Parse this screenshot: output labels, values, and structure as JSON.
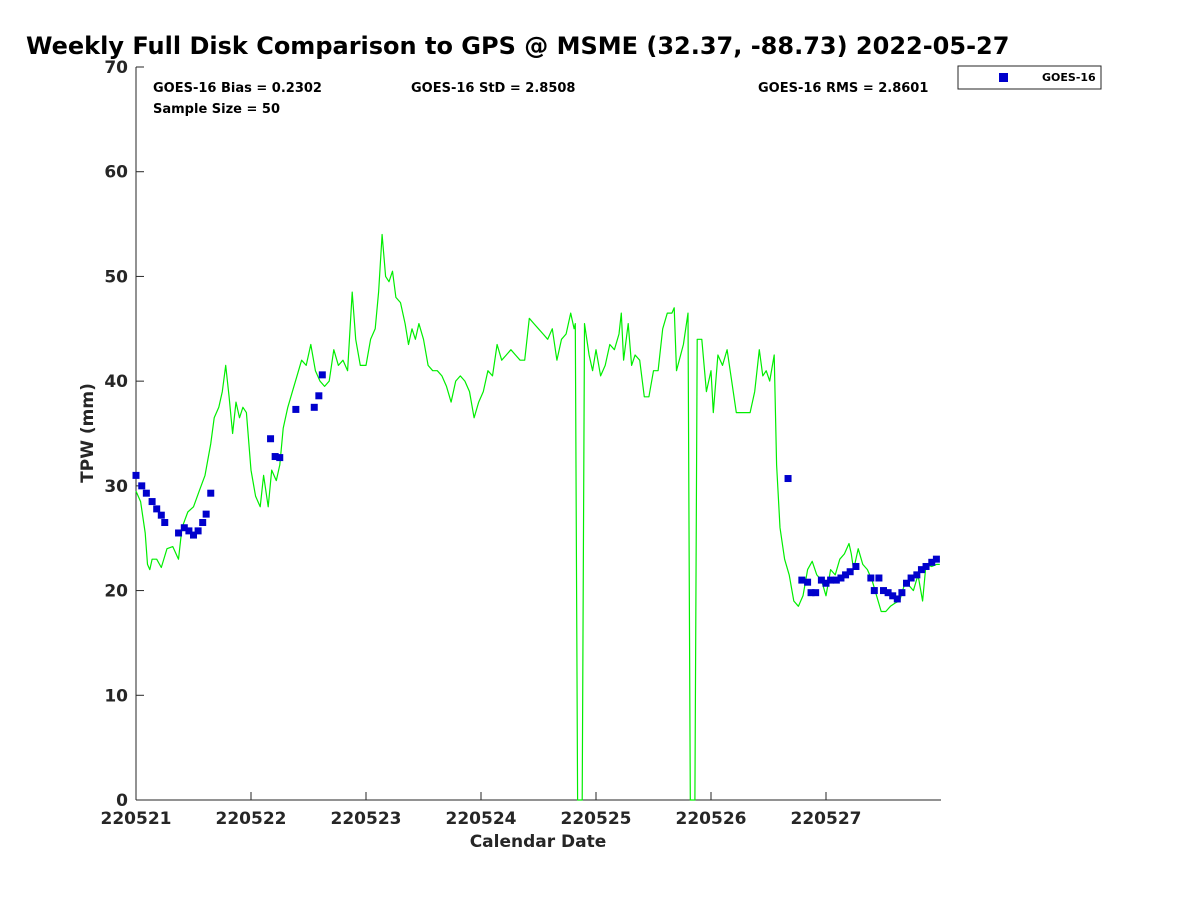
{
  "chart_data": {
    "type": "scatter",
    "title": "Weekly Full Disk Comparison to GPS @ MSME (32.37, -88.73) 2022-05-27",
    "xlabel": "Calendar Date",
    "ylabel": "TPW (mm)",
    "xlim": [
      220521,
      220528
    ],
    "ylim": [
      0,
      70
    ],
    "x_ticks": [
      {
        "label": "220521",
        "value": 220521
      },
      {
        "label": "220522",
        "value": 220522
      },
      {
        "label": "220523",
        "value": 220523
      },
      {
        "label": "220524",
        "value": 220524
      },
      {
        "label": "220525",
        "value": 220525
      },
      {
        "label": "220526",
        "value": 220526
      },
      {
        "label": "220527",
        "value": 220527
      }
    ],
    "y_ticks": [
      0,
      10,
      20,
      30,
      40,
      50,
      60,
      70
    ],
    "stats": {
      "bias": "GOES-16 Bias = 0.2302",
      "std": "GOES-16 StD = 2.8508",
      "rms": "GOES-16 RMS = 2.8601",
      "sample": "Sample Size = 50"
    },
    "legend": {
      "placement": "top-right",
      "entries": [
        {
          "label": "GOES-16",
          "color": "#0000cc",
          "marker": "square"
        }
      ]
    },
    "grid": false,
    "gps_line": {
      "color": "#00ee00",
      "points": [
        [
          220521.0,
          29.5
        ],
        [
          220521.04,
          28.5
        ],
        [
          220521.08,
          25.5
        ],
        [
          220521.1,
          22.5
        ],
        [
          220521.12,
          22.0
        ],
        [
          220521.14,
          23.0
        ],
        [
          220521.18,
          23.0
        ],
        [
          220521.22,
          22.2
        ],
        [
          220521.27,
          24.0
        ],
        [
          220521.32,
          24.2
        ],
        [
          220521.37,
          23.0
        ],
        [
          220521.4,
          26.0
        ],
        [
          220521.45,
          27.5
        ],
        [
          220521.5,
          28.0
        ],
        [
          220521.55,
          29.5
        ],
        [
          220521.6,
          31.0
        ],
        [
          220521.65,
          34.0
        ],
        [
          220521.68,
          36.5
        ],
        [
          220521.72,
          37.5
        ],
        [
          220521.75,
          39.0
        ],
        [
          220521.78,
          41.5
        ],
        [
          220521.81,
          38.5
        ],
        [
          220521.84,
          35.0
        ],
        [
          220521.87,
          38.0
        ],
        [
          220521.9,
          36.5
        ],
        [
          220521.93,
          37.5
        ],
        [
          220521.96,
          37.0
        ],
        [
          220522.0,
          31.5
        ],
        [
          220522.04,
          29.0
        ],
        [
          220522.08,
          28.0
        ],
        [
          220522.11,
          31.0
        ],
        [
          220522.15,
          28.0
        ],
        [
          220522.18,
          31.5
        ],
        [
          220522.22,
          30.5
        ],
        [
          220522.25,
          32.0
        ],
        [
          220522.28,
          35.5
        ],
        [
          220522.32,
          37.5
        ],
        [
          220522.36,
          39.0
        ],
        [
          220522.4,
          40.5
        ],
        [
          220522.44,
          42.0
        ],
        [
          220522.48,
          41.5
        ],
        [
          220522.52,
          43.5
        ],
        [
          220522.56,
          41.0
        ],
        [
          220522.6,
          40.0
        ],
        [
          220522.64,
          39.5
        ],
        [
          220522.68,
          40.0
        ],
        [
          220522.72,
          43.0
        ],
        [
          220522.76,
          41.5
        ],
        [
          220522.8,
          42.0
        ],
        [
          220522.84,
          41.0
        ],
        [
          220522.88,
          48.5
        ],
        [
          220522.91,
          44.0
        ],
        [
          220522.95,
          41.5
        ],
        [
          220523.0,
          41.5
        ],
        [
          220523.04,
          44.0
        ],
        [
          220523.08,
          45.0
        ],
        [
          220523.11,
          48.5
        ],
        [
          220523.14,
          54.0
        ],
        [
          220523.17,
          50.0
        ],
        [
          220523.2,
          49.5
        ],
        [
          220523.23,
          50.5
        ],
        [
          220523.26,
          48.0
        ],
        [
          220523.3,
          47.5
        ],
        [
          220523.34,
          45.5
        ],
        [
          220523.37,
          43.5
        ],
        [
          220523.4,
          45.0
        ],
        [
          220523.43,
          44.0
        ],
        [
          220523.46,
          45.5
        ],
        [
          220523.5,
          44.0
        ],
        [
          220523.54,
          41.5
        ],
        [
          220523.58,
          41.0
        ],
        [
          220523.62,
          41.0
        ],
        [
          220523.66,
          40.5
        ],
        [
          220523.7,
          39.5
        ],
        [
          220523.74,
          38.0
        ],
        [
          220523.78,
          40.0
        ],
        [
          220523.82,
          40.5
        ],
        [
          220523.86,
          40.0
        ],
        [
          220523.9,
          39.0
        ],
        [
          220523.94,
          36.5
        ],
        [
          220523.98,
          38.0
        ],
        [
          220524.02,
          39.0
        ],
        [
          220524.06,
          41.0
        ],
        [
          220524.1,
          40.5
        ],
        [
          220524.14,
          43.5
        ],
        [
          220524.18,
          42.0
        ],
        [
          220524.22,
          42.5
        ],
        [
          220524.26,
          43.0
        ],
        [
          220524.3,
          42.5
        ],
        [
          220524.34,
          42.0
        ],
        [
          220524.38,
          42.0
        ],
        [
          220524.42,
          46.0
        ],
        [
          220524.46,
          45.5
        ],
        [
          220524.5,
          45.0
        ],
        [
          220524.54,
          44.5
        ],
        [
          220524.58,
          44.0
        ],
        [
          220524.62,
          45.0
        ],
        [
          220524.66,
          42.0
        ],
        [
          220524.7,
          44.0
        ],
        [
          220524.74,
          44.5
        ],
        [
          220524.78,
          46.5
        ],
        [
          220524.81,
          45.0
        ],
        [
          220524.82,
          45.5
        ],
        [
          220524.84,
          0.0
        ],
        [
          220524.88,
          0.0
        ],
        [
          220524.9,
          45.5
        ],
        [
          220524.94,
          42.5
        ],
        [
          220524.97,
          41.0
        ],
        [
          220525.0,
          43.0
        ],
        [
          220525.04,
          40.5
        ],
        [
          220525.08,
          41.5
        ],
        [
          220525.12,
          43.5
        ],
        [
          220525.16,
          43.0
        ],
        [
          220525.2,
          44.5
        ],
        [
          220525.22,
          46.5
        ],
        [
          220525.24,
          42.0
        ],
        [
          220525.28,
          45.5
        ],
        [
          220525.31,
          41.5
        ],
        [
          220525.34,
          42.5
        ],
        [
          220525.38,
          42.0
        ],
        [
          220525.42,
          38.5
        ],
        [
          220525.46,
          38.5
        ],
        [
          220525.5,
          41.0
        ],
        [
          220525.54,
          41.0
        ],
        [
          220525.58,
          45.0
        ],
        [
          220525.62,
          46.5
        ],
        [
          220525.66,
          46.5
        ],
        [
          220525.68,
          47.0
        ],
        [
          220525.7,
          41.0
        ],
        [
          220525.76,
          43.5
        ],
        [
          220525.8,
          46.5
        ],
        [
          220525.82,
          0.0
        ],
        [
          220525.86,
          0.0
        ],
        [
          220525.88,
          44.0
        ],
        [
          220525.92,
          44.0
        ],
        [
          220525.96,
          39.0
        ],
        [
          220526.0,
          41.0
        ],
        [
          220526.02,
          37.0
        ],
        [
          220526.06,
          42.5
        ],
        [
          220526.1,
          41.5
        ],
        [
          220526.14,
          43.0
        ],
        [
          220526.18,
          40.0
        ],
        [
          220526.22,
          37.0
        ],
        [
          220526.26,
          37.0
        ],
        [
          220526.3,
          37.0
        ],
        [
          220526.34,
          37.0
        ],
        [
          220526.38,
          39.0
        ],
        [
          220526.42,
          43.0
        ],
        [
          220526.45,
          40.5
        ],
        [
          220526.48,
          41.0
        ],
        [
          220526.51,
          40.0
        ],
        [
          220526.55,
          42.5
        ],
        [
          220526.57,
          32.0
        ],
        [
          220526.6,
          26.0
        ],
        [
          220526.64,
          23.0
        ],
        [
          220526.68,
          21.5
        ],
        [
          220526.72,
          19.0
        ],
        [
          220526.76,
          18.5
        ],
        [
          220526.8,
          19.5
        ],
        [
          220526.84,
          22.0
        ],
        [
          220526.88,
          22.8
        ],
        [
          220526.92,
          21.5
        ],
        [
          220526.96,
          21.0
        ],
        [
          220527.0,
          19.5
        ],
        [
          220527.04,
          22.0
        ],
        [
          220527.08,
          21.5
        ],
        [
          220527.12,
          23.0
        ],
        [
          220527.16,
          23.5
        ],
        [
          220527.2,
          24.5
        ],
        [
          220527.22,
          23.5
        ],
        [
          220527.24,
          22.0
        ],
        [
          220527.28,
          24.0
        ],
        [
          220527.32,
          22.5
        ],
        [
          220527.36,
          22.0
        ],
        [
          220527.4,
          21.0
        ],
        [
          220527.44,
          19.5
        ],
        [
          220527.48,
          18.0
        ],
        [
          220527.52,
          18.0
        ],
        [
          220527.56,
          18.5
        ],
        [
          220527.6,
          18.8
        ],
        [
          220527.64,
          19.0
        ],
        [
          220527.68,
          20.5
        ],
        [
          220527.72,
          20.5
        ],
        [
          220527.76,
          20.0
        ],
        [
          220527.8,
          21.5
        ],
        [
          220527.84,
          19.0
        ],
        [
          220527.87,
          22.5
        ],
        [
          220527.92,
          22.3
        ],
        [
          220527.96,
          22.5
        ],
        [
          220527.99,
          22.5
        ]
      ]
    },
    "series": [
      {
        "name": "GOES-16",
        "color": "#0000cc",
        "points": [
          [
            220521.0,
            31.0
          ],
          [
            220521.05,
            30.0
          ],
          [
            220521.09,
            29.3
          ],
          [
            220521.14,
            28.5
          ],
          [
            220521.18,
            27.8
          ],
          [
            220521.22,
            27.2
          ],
          [
            220521.25,
            26.5
          ],
          [
            220521.37,
            25.5
          ],
          [
            220521.42,
            26.0
          ],
          [
            220521.46,
            25.7
          ],
          [
            220521.5,
            25.3
          ],
          [
            220521.54,
            25.7
          ],
          [
            220521.58,
            26.5
          ],
          [
            220521.61,
            27.3
          ],
          [
            220521.65,
            29.3
          ],
          [
            220522.17,
            34.5
          ],
          [
            220522.21,
            32.8
          ],
          [
            220522.25,
            32.7
          ],
          [
            220522.39,
            37.3
          ],
          [
            220522.55,
            37.5
          ],
          [
            220522.59,
            38.6
          ],
          [
            220522.62,
            40.6
          ],
          [
            220526.67,
            30.7
          ],
          [
            220526.79,
            21.0
          ],
          [
            220526.84,
            20.8
          ],
          [
            220526.87,
            19.8
          ],
          [
            220526.91,
            19.8
          ],
          [
            220526.96,
            21.0
          ],
          [
            220527.0,
            20.7
          ],
          [
            220527.04,
            21.0
          ],
          [
            220527.09,
            21.0
          ],
          [
            220527.13,
            21.2
          ],
          [
            220527.17,
            21.5
          ],
          [
            220527.21,
            21.8
          ],
          [
            220527.26,
            22.3
          ],
          [
            220527.39,
            21.2
          ],
          [
            220527.42,
            20.0
          ],
          [
            220527.46,
            21.2
          ],
          [
            220527.5,
            20.0
          ],
          [
            220527.54,
            19.8
          ],
          [
            220527.58,
            19.5
          ],
          [
            220527.62,
            19.2
          ],
          [
            220527.66,
            19.8
          ],
          [
            220527.7,
            20.7
          ],
          [
            220527.74,
            21.2
          ],
          [
            220527.79,
            21.5
          ],
          [
            220527.83,
            22.0
          ],
          [
            220527.87,
            22.3
          ],
          [
            220527.92,
            22.7
          ],
          [
            220527.96,
            23.0
          ]
        ]
      }
    ]
  }
}
